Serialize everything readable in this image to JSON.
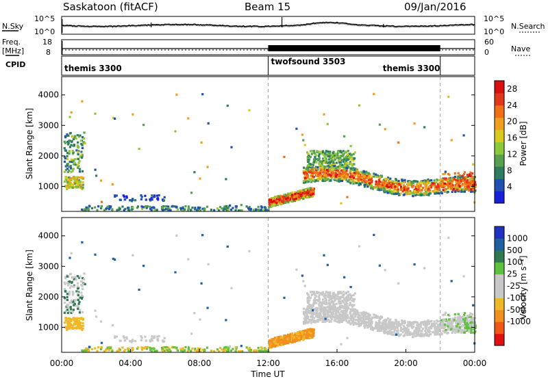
{
  "header": {
    "station": "Saskatoon (fitACF)",
    "beam": "Beam 15",
    "date": "09/Jan/2016"
  },
  "noise_panel": {
    "left_label": "N.Sky",
    "right_label": "N.Search",
    "left_ticks": [
      "10^5",
      "10^0"
    ],
    "right_ticks": [
      "10^5",
      "10^0"
    ]
  },
  "freq_panel": {
    "left_label_1": "Freq.",
    "left_label_2": "[MHz]",
    "right_label": "Nave",
    "left_ticks": [
      "18",
      "8"
    ],
    "right_ticks": [
      "60",
      "0"
    ]
  },
  "cpid_panel": {
    "label": "CPID",
    "segments": [
      {
        "name": "themis 3300",
        "start_hour": 0,
        "end_hour": 12
      },
      {
        "name": "twofsound 3503",
        "start_hour": 12,
        "end_hour": 22
      },
      {
        "name": "themis 3300",
        "start_hour": 22,
        "end_hour": 24
      }
    ]
  },
  "colors": {
    "power": [
      "#1520d8",
      "#2050b0",
      "#2e7d5e",
      "#58a050",
      "#8cc83c",
      "#d8c820",
      "#f0a020",
      "#f07018",
      "#e03818",
      "#d81010"
    ],
    "velocity_bins": [
      "#e01010",
      "#f05818",
      "#f09020",
      "#f0b828",
      "#c8c8c8",
      "#c8c8c8",
      "#60c040",
      "#307850",
      "#2060a0",
      "#2030c0"
    ],
    "vline": "#a0a0a0"
  },
  "chart_data": [
    {
      "type": "heatmap",
      "name": "power",
      "ylabel": "Slant Range [km]",
      "yticks": [
        1000,
        2000,
        3000,
        4000
      ],
      "ylim": [
        180,
        4600
      ],
      "xlim": [
        0,
        24
      ],
      "colorbar_label": "Power [dB]",
      "colorbar_ticks": [
        28,
        24,
        20,
        16,
        12,
        8,
        4
      ],
      "colorbar_range": [
        0,
        30
      ],
      "vlines": [
        12,
        22
      ]
    },
    {
      "type": "heatmap",
      "name": "velocity",
      "ylabel": "Slant Range [km]",
      "yticks": [
        1000,
        2000,
        3000,
        4000
      ],
      "ylim": [
        180,
        4600
      ],
      "xlim": [
        0,
        24
      ],
      "xlabel": "Time UT",
      "xticks": [
        "00:00",
        "04:00",
        "08:00",
        "12:00",
        "16:00",
        "20:00",
        "00:00"
      ],
      "colorbar_label": "Velocity [m s⁻¹]",
      "colorbar_ticks": [
        "1000",
        "500",
        "100",
        "25",
        "-25",
        "-100",
        "-500",
        "-1000"
      ],
      "vlines": [
        12,
        22
      ]
    }
  ]
}
